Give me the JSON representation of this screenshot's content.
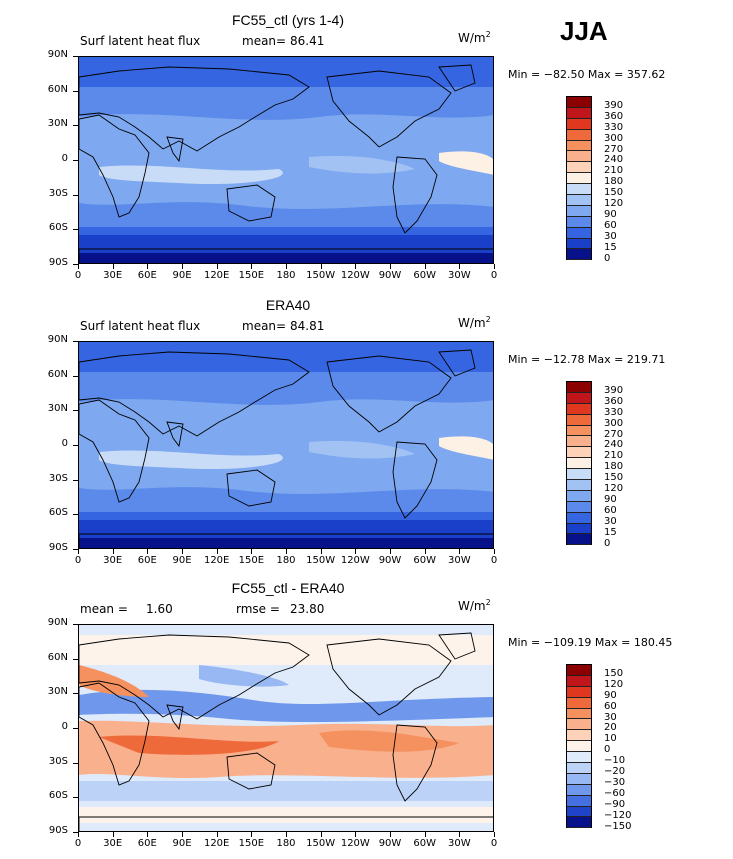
{
  "season": "JJA",
  "panels": [
    {
      "title": "FC55_ctl (yrs 1-4)",
      "left_label": "Surf latent heat flux",
      "stat_label": "mean=",
      "stat_value": "86.41",
      "stat2_label": "",
      "stat2_value": "",
      "units": "W/m",
      "units_exp": "2",
      "minmax": "Min = −82.50 Max = 357.62",
      "colorbar_labels": [
        "390",
        "360",
        "330",
        "300",
        "270",
        "240",
        "210",
        "180",
        "150",
        "120",
        "90",
        "60",
        "30",
        "15",
        "0"
      ],
      "colorbar_colors": [
        "#8b0000",
        "#c0161b",
        "#e0381f",
        "#ef6a3a",
        "#f5915e",
        "#f9b08c",
        "#fcd3b8",
        "#fdf0e4",
        "#c9dcf7",
        "#a2c2f4",
        "#7ea8f0",
        "#5b8aea",
        "#3565e0",
        "#1a3fc8",
        "#06118a"
      ],
      "tone": "flux"
    },
    {
      "title": "ERA40",
      "left_label": "Surf latent heat flux",
      "stat_label": "mean=",
      "stat_value": "84.81",
      "stat2_label": "",
      "stat2_value": "",
      "units": "W/m",
      "units_exp": "2",
      "minmax": "Min = −12.78 Max = 219.71",
      "colorbar_labels": [
        "390",
        "360",
        "330",
        "300",
        "270",
        "240",
        "210",
        "180",
        "150",
        "120",
        "90",
        "60",
        "30",
        "15",
        "0"
      ],
      "colorbar_colors": [
        "#8b0000",
        "#c0161b",
        "#e0381f",
        "#ef6a3a",
        "#f5915e",
        "#f9b08c",
        "#fcd3b8",
        "#fdf0e4",
        "#c9dcf7",
        "#a2c2f4",
        "#7ea8f0",
        "#5b8aea",
        "#3565e0",
        "#1a3fc8",
        "#06118a"
      ],
      "tone": "flux"
    },
    {
      "title": "FC55_ctl - ERA40",
      "left_label": "",
      "stat_label": "mean =",
      "stat_value": "1.60",
      "stat2_label": "rmse =",
      "stat2_value": "23.80",
      "units": "W/m",
      "units_exp": "2",
      "minmax": "Min = −109.19 Max = 180.45",
      "colorbar_labels": [
        "150",
        "120",
        "90",
        "60",
        "30",
        "20",
        "10",
        "0",
        "−10",
        "−20",
        "−30",
        "−60",
        "−90",
        "−120",
        "−150"
      ],
      "colorbar_colors": [
        "#8b0000",
        "#c0161b",
        "#e0381f",
        "#ef6a3a",
        "#f5915e",
        "#f9b08c",
        "#fcd3b8",
        "#fdf3ea",
        "#dfeafb",
        "#bcd3f7",
        "#97b8f2",
        "#6f98ec",
        "#4470e2",
        "#1f44c8",
        "#06118a"
      ],
      "tone": "diff"
    }
  ],
  "lat_labels": [
    "90N",
    "60N",
    "30N",
    "0",
    "30S",
    "60S",
    "90S"
  ],
  "lon_labels": [
    "0",
    "30E",
    "60E",
    "90E",
    "120E",
    "150E",
    "180",
    "150W",
    "120W",
    "90W",
    "60W",
    "30W",
    "0"
  ]
}
